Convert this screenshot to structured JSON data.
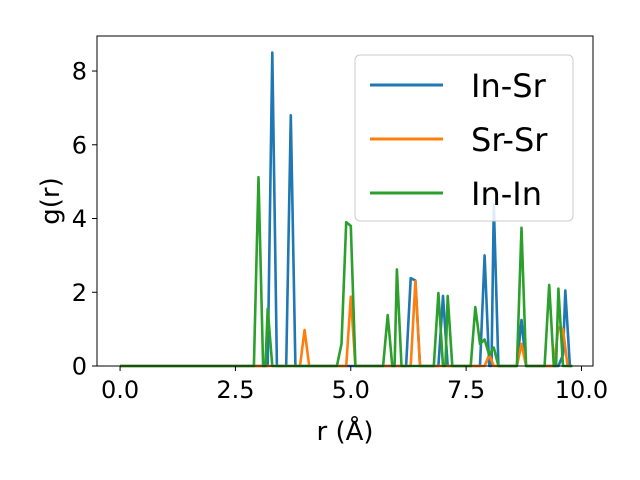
{
  "chart_data": {
    "type": "line",
    "title": "",
    "xlabel": "r (Å)",
    "ylabel": "g(r)",
    "xlim": [
      -0.5,
      10.25
    ],
    "ylim": [
      0,
      8.95
    ],
    "xticks": [
      "0.0",
      "2.5",
      "5.0",
      "7.5",
      "10.0"
    ],
    "yticks": [
      "0",
      "2",
      "4",
      "6",
      "8"
    ],
    "grid": false,
    "legend_position": "top-right",
    "series": [
      {
        "name": "In-Sr",
        "color": "#1f77b4",
        "points": [
          [
            0.0,
            0
          ],
          [
            3.2,
            0
          ],
          [
            3.3,
            8.5
          ],
          [
            3.4,
            0
          ],
          [
            3.6,
            0
          ],
          [
            3.7,
            6.8
          ],
          [
            3.8,
            0
          ],
          [
            6.2,
            0
          ],
          [
            6.3,
            2.38
          ],
          [
            6.4,
            2.32
          ],
          [
            6.5,
            0
          ],
          [
            6.9,
            0
          ],
          [
            7.0,
            1.9
          ],
          [
            7.1,
            0
          ],
          [
            7.8,
            0
          ],
          [
            7.9,
            3.0
          ],
          [
            8.0,
            0
          ],
          [
            8.05,
            0
          ],
          [
            8.1,
            4.38
          ],
          [
            8.2,
            0
          ],
          [
            8.6,
            0
          ],
          [
            8.7,
            1.25
          ],
          [
            8.8,
            0
          ],
          [
            9.5,
            0
          ],
          [
            9.6,
            0.3
          ],
          [
            9.65,
            2.05
          ],
          [
            9.75,
            0
          ],
          [
            9.8,
            0
          ]
        ]
      },
      {
        "name": "Sr-Sr",
        "color": "#ff7f0e",
        "points": [
          [
            0.0,
            0
          ],
          [
            3.9,
            0
          ],
          [
            4.0,
            0.98
          ],
          [
            4.1,
            0
          ],
          [
            4.9,
            0
          ],
          [
            5.0,
            1.88
          ],
          [
            5.1,
            0
          ],
          [
            6.3,
            0
          ],
          [
            6.4,
            2.3
          ],
          [
            6.5,
            0
          ],
          [
            7.9,
            0
          ],
          [
            8.0,
            0.3
          ],
          [
            8.1,
            0
          ],
          [
            8.6,
            0
          ],
          [
            8.7,
            0.6
          ],
          [
            8.8,
            0
          ],
          [
            9.4,
            0
          ],
          [
            9.5,
            1.05
          ],
          [
            9.6,
            1.0
          ],
          [
            9.7,
            0
          ],
          [
            9.8,
            0
          ]
        ]
      },
      {
        "name": "In-In",
        "color": "#2ca02c",
        "points": [
          [
            0.0,
            0
          ],
          [
            2.9,
            0
          ],
          [
            3.0,
            5.12
          ],
          [
            3.1,
            0
          ],
          [
            3.15,
            0
          ],
          [
            3.2,
            1.55
          ],
          [
            3.3,
            0
          ],
          [
            4.7,
            0
          ],
          [
            4.8,
            0.6
          ],
          [
            4.9,
            3.9
          ],
          [
            5.0,
            3.8
          ],
          [
            5.1,
            0
          ],
          [
            5.7,
            0
          ],
          [
            5.8,
            1.38
          ],
          [
            5.9,
            0
          ],
          [
            5.95,
            0
          ],
          [
            6.0,
            2.62
          ],
          [
            6.1,
            0
          ],
          [
            6.8,
            0
          ],
          [
            6.9,
            1.98
          ],
          [
            7.0,
            0
          ],
          [
            7.05,
            0
          ],
          [
            7.1,
            1.9
          ],
          [
            7.2,
            0
          ],
          [
            7.6,
            0
          ],
          [
            7.7,
            1.6
          ],
          [
            7.8,
            0.6
          ],
          [
            7.9,
            0.72
          ],
          [
            8.0,
            0.3
          ],
          [
            8.1,
            0.5
          ],
          [
            8.2,
            0
          ],
          [
            8.6,
            0
          ],
          [
            8.7,
            3.75
          ],
          [
            8.8,
            0
          ],
          [
            9.2,
            0
          ],
          [
            9.3,
            2.2
          ],
          [
            9.4,
            0
          ],
          [
            9.45,
            0
          ],
          [
            9.5,
            2.1
          ],
          [
            9.6,
            0
          ],
          [
            9.8,
            0
          ]
        ]
      }
    ]
  }
}
